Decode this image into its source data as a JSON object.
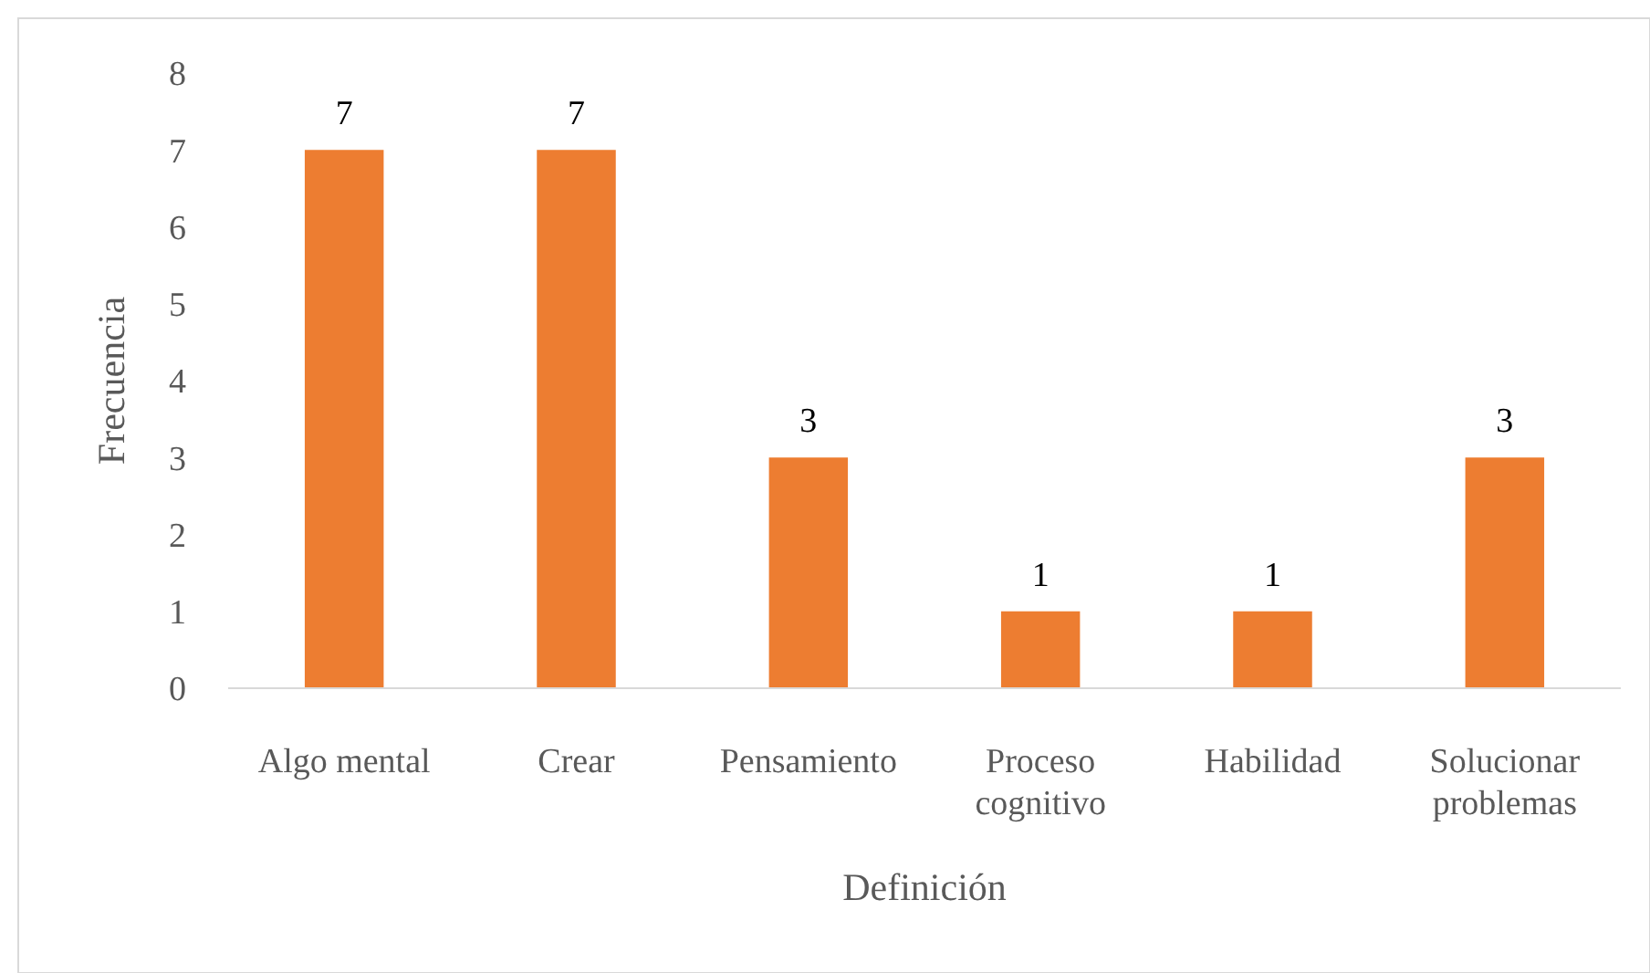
{
  "chart_data": {
    "type": "bar",
    "xlabel": "Definición",
    "ylabel": "Frecuencia",
    "categories": [
      "Algo mental",
      "Crear",
      "Pensamiento",
      "Proceso cognitivo",
      "Habilidad",
      "Solucionar problemas"
    ],
    "values": [
      7,
      7,
      3,
      1,
      1,
      3
    ],
    "color": "#ed7d31",
    "ylim": [
      0,
      8
    ],
    "yticks": [
      0,
      1,
      2,
      3,
      4,
      5,
      6,
      7,
      8
    ],
    "grid": false,
    "data_labels": true
  }
}
